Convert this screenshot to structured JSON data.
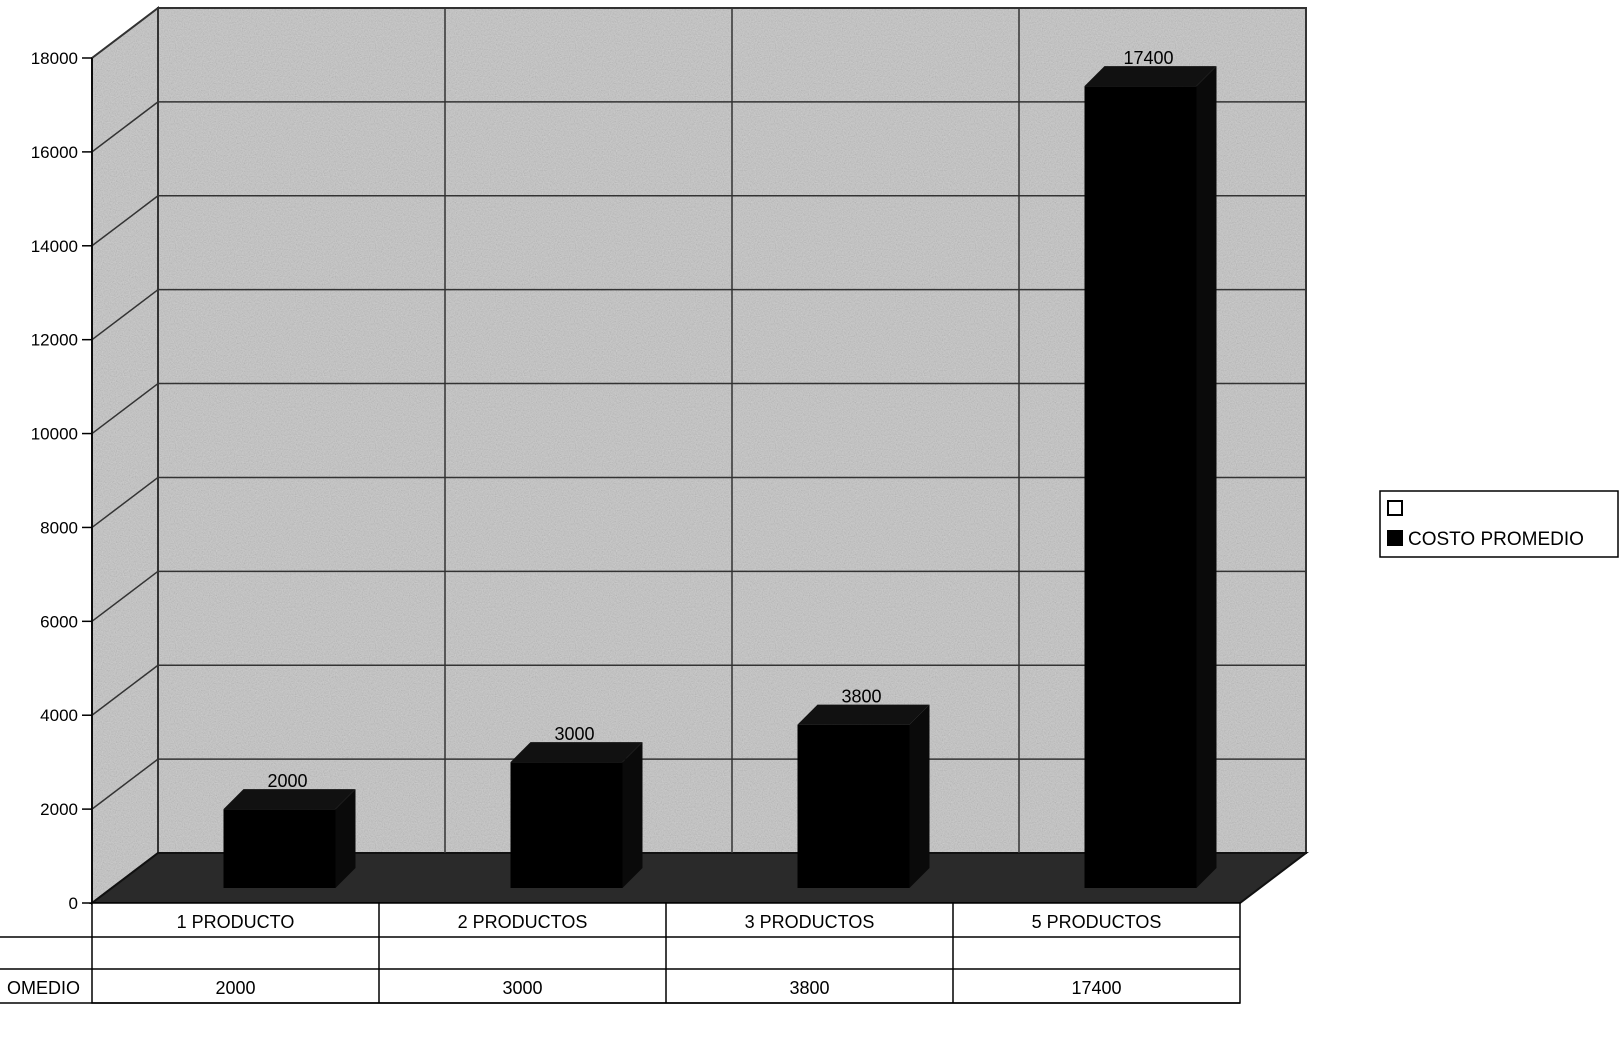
{
  "chart_data": {
    "type": "bar",
    "title": "",
    "xlabel": "",
    "ylabel": "",
    "categories": [
      "1 PRODUCTO",
      "2 PRODUCTOS",
      "3 PRODUCTOS",
      "5 PRODUCTOS"
    ],
    "series": [
      {
        "name": "",
        "values": [
          null,
          null,
          null,
          null
        ],
        "color": "#ffffff"
      },
      {
        "name": "COSTO PROMEDIO",
        "values": [
          2000,
          3000,
          3800,
          17400
        ],
        "color": "#000000"
      }
    ],
    "data_labels": [
      "2000",
      "3000",
      "3800",
      "17400"
    ],
    "ylim": [
      0,
      18000
    ],
    "y_ticks": [
      0,
      2000,
      4000,
      6000,
      8000,
      10000,
      12000,
      14000,
      16000,
      18000
    ],
    "grid": true,
    "legend": "right",
    "data_table": {
      "row_labels": [
        "",
        "OMEDIO"
      ],
      "rows": [
        [
          "",
          "",
          "",
          ""
        ],
        [
          "2000",
          "3000",
          "3800",
          "17400"
        ]
      ]
    },
    "colors": {
      "wall": "#b9b9b9",
      "floor": "#2a2a2a",
      "bar": "#000000",
      "grid": "#333333"
    }
  }
}
